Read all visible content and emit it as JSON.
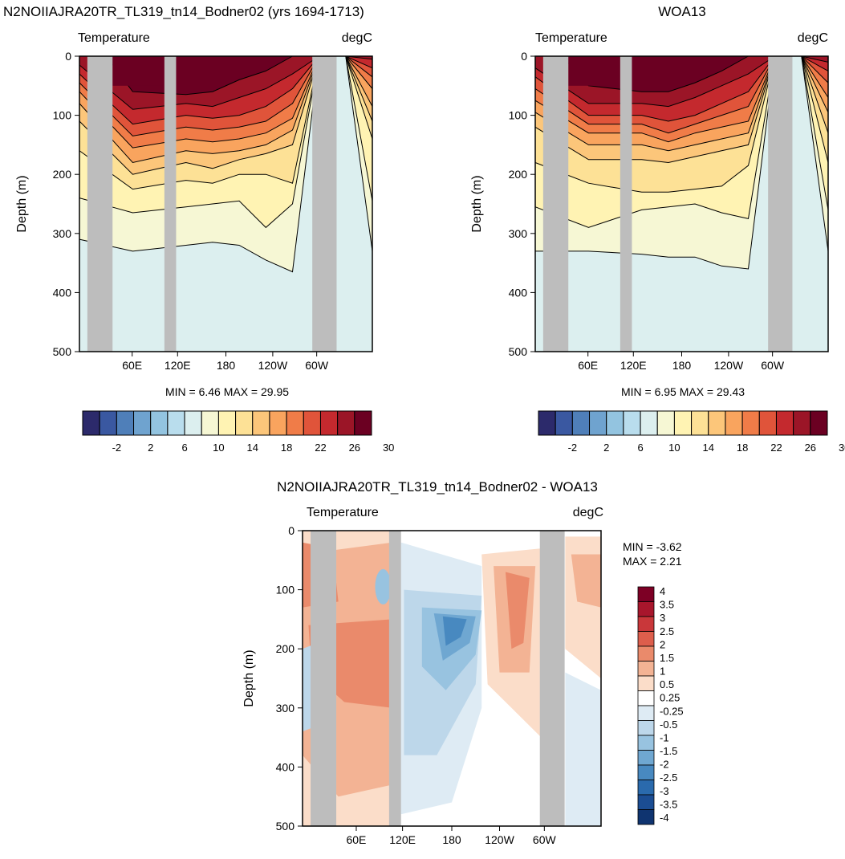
{
  "panels": [
    {
      "id": "model",
      "title": "N2NOIIAJRA20TR_TL319_tn14_Bodner02 (yrs 1694-1713)",
      "variable": "Temperature",
      "units": "degC",
      "ylabel": "Depth (m)",
      "min_max_text": "MIN =   6.46  MAX =  29.95"
    },
    {
      "id": "obs",
      "title": "WOA13",
      "variable": "Temperature",
      "units": "degC",
      "ylabel": "Depth (m)",
      "min_max_text": "MIN =   6.95  MAX =  29.43"
    },
    {
      "id": "diff",
      "title": "N2NOIIAJRA20TR_TL319_tn14_Bodner02 - WOA13",
      "variable": "Temperature",
      "units": "degC",
      "ylabel": "Depth (m)",
      "min_text": "MIN =  -3.62",
      "max_text": "MAX =   2.21"
    }
  ],
  "colorbar_temp": {
    "colors": [
      "#2c2a6b",
      "#3a58a1",
      "#4f7fb9",
      "#6fa3cf",
      "#93c4e0",
      "#b9dded",
      "#dcefef",
      "#f6f7d4",
      "#fff3b3",
      "#fde196",
      "#fcc67a",
      "#f9a45e",
      "#f07c48",
      "#e0543a",
      "#c4292e",
      "#9b1527",
      "#6b0022"
    ],
    "labels": [
      "-2",
      "2",
      "6",
      "10",
      "14",
      "18",
      "22",
      "26",
      "30"
    ]
  },
  "colorbar_diff": {
    "colors": [
      "#7d0025",
      "#a8162c",
      "#c9373a",
      "#dd5e4c",
      "#ea8a6b",
      "#f3b394",
      "#fbddc9",
      "#ffffff",
      "#deebf4",
      "#bdd7ea",
      "#98c3e0",
      "#6fa7d1",
      "#4889c0",
      "#2a6aad",
      "#1b4d93",
      "#0f3470"
    ],
    "labels": [
      "4",
      "3.5",
      "3",
      "2.5",
      "2",
      "1.5",
      "1",
      "0.5",
      "0.25",
      "-0.25",
      "-0.5",
      "-1",
      "-1.5",
      "-2",
      "-2.5",
      "-3",
      "-3.5",
      "-4"
    ]
  },
  "chart_data": [
    {
      "type": "heatmap",
      "title": "N2NOIIAJRA20TR_TL319_tn14_Bodner02 (yrs 1694-1713)",
      "variable": "Temperature",
      "units": "degC",
      "xlabel": "",
      "ylabel": "Depth (m)",
      "x_ticks": [
        "60E",
        "120E",
        "180",
        "120W",
        "60W"
      ],
      "y_ticks": [
        0,
        100,
        200,
        300,
        400,
        500
      ],
      "ylim": [
        500,
        0
      ],
      "min": 6.46,
      "max": 29.95,
      "levels": [
        -2,
        0,
        2,
        4,
        6,
        8,
        10,
        12,
        14,
        16,
        18,
        20,
        22,
        24,
        26,
        28,
        30
      ],
      "isotherms": [
        {
          "level": 28,
          "depth": [
            0,
            0,
            60,
            0,
            65,
            60,
            40,
            25,
            0,
            0,
            0,
            0
          ]
        },
        {
          "level": 26,
          "depth": [
            15,
            0,
            90,
            0,
            80,
            85,
            70,
            55,
            30,
            0,
            0,
            5
          ]
        },
        {
          "level": 24,
          "depth": [
            30,
            0,
            115,
            0,
            100,
            105,
            100,
            85,
            55,
            0,
            0,
            20
          ]
        },
        {
          "level": 22,
          "depth": [
            45,
            0,
            135,
            0,
            120,
            125,
            120,
            110,
            80,
            0,
            0,
            35
          ]
        },
        {
          "level": 20,
          "depth": [
            60,
            0,
            155,
            0,
            140,
            145,
            140,
            130,
            105,
            0,
            0,
            55
          ]
        },
        {
          "level": 18,
          "depth": [
            80,
            0,
            180,
            0,
            160,
            165,
            160,
            150,
            125,
            0,
            0,
            85
          ]
        },
        {
          "level": 16,
          "depth": [
            110,
            0,
            200,
            0,
            180,
            190,
            175,
            165,
            150,
            0,
            0,
            110
          ]
        },
        {
          "level": 14,
          "depth": [
            160,
            0,
            225,
            0,
            210,
            215,
            200,
            200,
            215,
            0,
            0,
            140
          ]
        },
        {
          "level": 12,
          "depth": [
            240,
            0,
            265,
            0,
            255,
            250,
            245,
            290,
            250,
            0,
            0,
            245
          ]
        },
        {
          "level": 10,
          "depth": [
            310,
            0,
            330,
            0,
            320,
            315,
            320,
            345,
            365,
            0,
            0,
            330
          ]
        }
      ]
    },
    {
      "type": "heatmap",
      "title": "WOA13",
      "variable": "Temperature",
      "units": "degC",
      "xlabel": "",
      "ylabel": "Depth (m)",
      "x_ticks": [
        "60E",
        "120E",
        "180",
        "120W",
        "60W"
      ],
      "y_ticks": [
        0,
        100,
        200,
        300,
        400,
        500
      ],
      "ylim": [
        500,
        0
      ],
      "min": 6.95,
      "max": 29.43,
      "levels": [
        -2,
        0,
        2,
        4,
        6,
        8,
        10,
        12,
        14,
        16,
        18,
        20,
        22,
        24,
        26,
        28,
        30
      ],
      "isotherms": [
        {
          "level": 28,
          "depth": [
            0,
            0,
            50,
            0,
            60,
            60,
            45,
            25,
            0,
            0,
            0,
            0
          ]
        },
        {
          "level": 26,
          "depth": [
            20,
            0,
            80,
            0,
            80,
            85,
            70,
            50,
            30,
            0,
            0,
            10
          ]
        },
        {
          "level": 24,
          "depth": [
            35,
            0,
            100,
            0,
            100,
            110,
            100,
            80,
            60,
            0,
            0,
            25
          ]
        },
        {
          "level": 22,
          "depth": [
            55,
            0,
            115,
            0,
            115,
            130,
            115,
            100,
            85,
            0,
            0,
            45
          ]
        },
        {
          "level": 20,
          "depth": [
            75,
            0,
            130,
            0,
            130,
            145,
            130,
            120,
            110,
            0,
            0,
            70
          ]
        },
        {
          "level": 18,
          "depth": [
            95,
            0,
            150,
            0,
            150,
            160,
            150,
            140,
            130,
            0,
            0,
            95
          ]
        },
        {
          "level": 16,
          "depth": [
            120,
            0,
            175,
            0,
            175,
            180,
            170,
            160,
            150,
            0,
            0,
            130
          ]
        },
        {
          "level": 14,
          "depth": [
            180,
            0,
            215,
            0,
            230,
            230,
            225,
            220,
            185,
            0,
            0,
            180
          ]
        },
        {
          "level": 12,
          "depth": [
            255,
            0,
            290,
            0,
            260,
            255,
            250,
            265,
            275,
            0,
            0,
            260
          ]
        },
        {
          "level": 10,
          "depth": [
            330,
            0,
            330,
            0,
            335,
            340,
            340,
            355,
            360,
            0,
            0,
            330
          ]
        }
      ]
    },
    {
      "type": "heatmap",
      "title": "N2NOIIAJRA20TR_TL319_tn14_Bodner02 - WOA13",
      "variable": "Temperature",
      "units": "degC",
      "xlabel": "",
      "ylabel": "Depth (m)",
      "x_ticks": [
        "60E",
        "120E",
        "180",
        "120W",
        "60W"
      ],
      "y_ticks": [
        0,
        100,
        200,
        300,
        400,
        500
      ],
      "ylim": [
        500,
        0
      ],
      "min": -3.62,
      "max": 2.21,
      "levels": [
        -4,
        -3.5,
        -3,
        -2.5,
        -2,
        -1.5,
        -1,
        -0.5,
        -0.25,
        0.25,
        0.5,
        1,
        1.5,
        2,
        2.5,
        3,
        3.5,
        4
      ]
    }
  ]
}
